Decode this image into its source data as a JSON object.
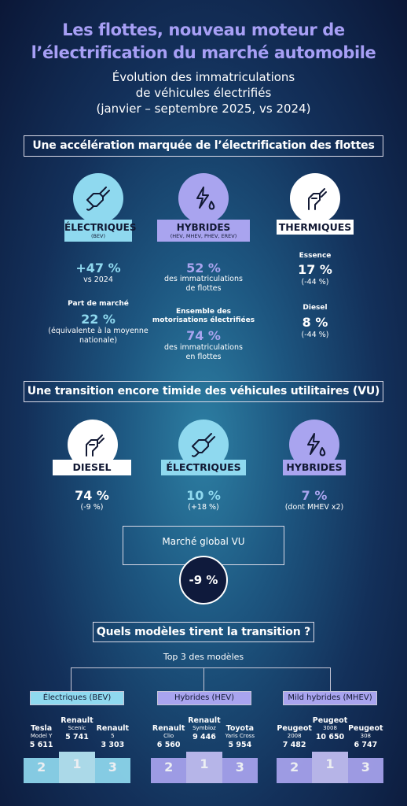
{
  "header": {
    "title_line1": "Les flottes, nouveau moteur de",
    "title_line2": "l’électrification du marché automobile",
    "subtitle_line1": "Évolution des immatriculations",
    "subtitle_line2": "de véhicules électrifiés",
    "subtitle_line3": "(janvier – septembre 2025, vs 2024)"
  },
  "section1": {
    "heading": "Une accélération marquée de l’électrification des flottes",
    "electriques": {
      "icon": "ev-charger-plug-icon",
      "label": "ÉLECTRIQUES",
      "sublabel": "(BEV)",
      "value1": "+47 %",
      "text1": "vs 2024",
      "part_title": "Part de marché",
      "value2": "22 %",
      "text2_line1": "(équivalente à la moyenne",
      "text2_line2": "nationale)"
    },
    "hybrides": {
      "icon": "hybrid-lightning-drop-icon",
      "label": "HYBRIDES",
      "sublabel": "(HEV, MHEV, PHEV, EREV)",
      "value1": "52 %",
      "text1_line1": "des immatriculations",
      "text1_line2": "de flottes",
      "ens_title_line1": "Ensemble des",
      "ens_title_line2": "motorisations électrifiées",
      "value2": "74 %",
      "text2_line1": "des immatriculations",
      "text2_line2": "en flottes"
    },
    "thermiques": {
      "icon": "fuel-nozzle-icon",
      "label": "THERMIQUES",
      "essence_title": "Essence",
      "essence_value": "17 %",
      "essence_change": "(-44 %)",
      "diesel_title": "Diesel",
      "diesel_value": "8 %",
      "diesel_change": "(-44 %)"
    }
  },
  "section2": {
    "heading": "Une transition encore timide des véhicules utilitaires (VU)",
    "diesel": {
      "icon": "fuel-nozzle-icon",
      "label": "DIESEL",
      "value": "74 %",
      "change": "(-9 %)"
    },
    "electriques": {
      "icon": "ev-charger-plug-icon",
      "label": "ÉLECTRIQUES",
      "value": "10 %",
      "change": "(+18 %)"
    },
    "hybrides": {
      "icon": "hybrid-lightning-drop-icon",
      "label": "HYBRIDES",
      "value": "7 %",
      "change": "(dont MHEV x2)"
    },
    "global_label": "Marché global VU",
    "global_value": "-9 %"
  },
  "section3": {
    "heading": "Quels modèles tirent la transition ?",
    "subheading": "Top 3 des modèles",
    "groups": [
      {
        "label": "Électriques (BEV)",
        "color": "#8fd9ef",
        "first": {
          "brand": "Renault",
          "model": "Scenic",
          "value": "5 741"
        },
        "second": {
          "brand": "Tesla",
          "model": "Model Y",
          "value": "5 611"
        },
        "third": {
          "brand": "Renault",
          "model": "5",
          "value": "3 303"
        }
      },
      {
        "label": "Hybrides (HEV)",
        "color": "#a9a4ef",
        "first": {
          "brand": "Renault",
          "model": "Symbioz",
          "value": "9 446"
        },
        "second": {
          "brand": "Renault",
          "model": "Clio",
          "value": "6 560"
        },
        "third": {
          "brand": "Toyota",
          "model": "Yaris Cross",
          "value": "5 954"
        }
      },
      {
        "label": "Mild hybrides (MHEV)",
        "color": "#a9a4ef",
        "first": {
          "brand": "Peugeot",
          "model": "3008",
          "value": "10 650"
        },
        "second": {
          "brand": "Peugeot",
          "model": "2008",
          "value": "7 482"
        },
        "third": {
          "brand": "Peugeot",
          "model": "308",
          "value": "6 747"
        }
      }
    ],
    "step_labels": {
      "first": "1",
      "second": "2",
      "third": "3"
    }
  }
}
